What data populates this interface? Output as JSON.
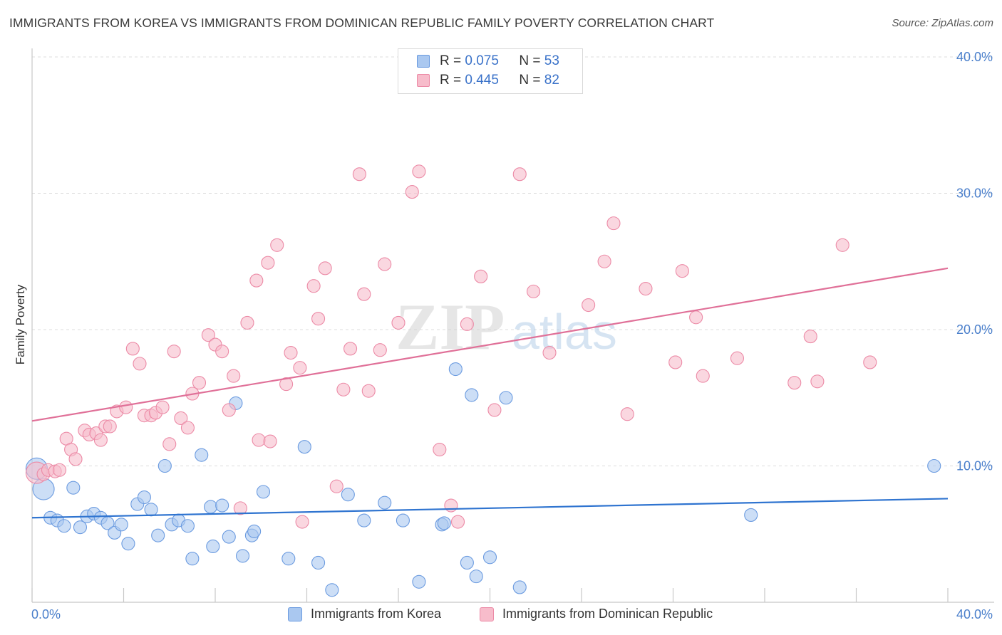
{
  "title": "IMMIGRANTS FROM KOREA VS IMMIGRANTS FROM DOMINICAN REPUBLIC FAMILY POVERTY CORRELATION CHART",
  "source": "Source: ZipAtlas.com",
  "watermark": {
    "zip": "ZIP",
    "atlas": "atlas"
  },
  "legend": {
    "r_label": "R =",
    "n_label": "N =",
    "series": [
      {
        "r": "0.075",
        "n": "53"
      },
      {
        "r": "0.445",
        "n": "82"
      }
    ]
  },
  "bottom_legend": [
    "Immigrants from Korea",
    "Immigrants from Dominican Republic"
  ],
  "colors": {
    "korea_fill": "#aac8f0",
    "korea_stroke": "#6b9be0",
    "korea_line": "#2f74d0",
    "dr_fill": "#f7bccb",
    "dr_stroke": "#ec8aa6",
    "dr_line": "#e07098",
    "tick_label": "#4a7fcb",
    "grid": "#dcdcdc"
  },
  "chart_data": {
    "type": "scatter",
    "xlabel": "",
    "ylabel": "Family Poverty",
    "xlim": [
      0,
      40
    ],
    "ylim": [
      0,
      40
    ],
    "x_tick_labels": [
      "0.0%",
      "40.0%"
    ],
    "y_ticks": [
      10,
      20,
      30,
      40
    ],
    "y_tick_labels": [
      "10.0%",
      "20.0%",
      "30.0%",
      "40.0%"
    ],
    "grid": true,
    "legend_position": "top-center",
    "series": [
      {
        "name": "Immigrants from Korea",
        "r": 0.075,
        "n": 53,
        "trend": {
          "x": [
            0,
            40
          ],
          "y": [
            6.2,
            7.6
          ]
        },
        "points": [
          [
            0.2,
            9.8,
            1
          ],
          [
            0.5,
            8.3,
            1
          ],
          [
            0.8,
            6.2,
            0
          ],
          [
            1.1,
            6.0,
            0
          ],
          [
            1.4,
            5.6,
            0
          ],
          [
            1.8,
            8.4,
            0
          ],
          [
            2.1,
            5.5,
            0
          ],
          [
            2.4,
            6.3,
            0
          ],
          [
            2.7,
            6.5,
            0
          ],
          [
            3.0,
            6.2,
            0
          ],
          [
            3.3,
            5.8,
            0
          ],
          [
            3.6,
            5.1,
            0
          ],
          [
            3.9,
            5.7,
            0
          ],
          [
            4.2,
            4.3,
            0
          ],
          [
            4.6,
            7.2,
            0
          ],
          [
            4.9,
            7.7,
            0
          ],
          [
            5.2,
            6.8,
            0
          ],
          [
            5.5,
            4.9,
            0
          ],
          [
            5.8,
            10.0,
            0
          ],
          [
            6.1,
            5.7,
            0
          ],
          [
            6.4,
            6.0,
            0
          ],
          [
            6.8,
            5.6,
            0
          ],
          [
            7.0,
            3.2,
            0
          ],
          [
            7.4,
            10.8,
            0
          ],
          [
            7.8,
            7.0,
            0
          ],
          [
            7.9,
            4.1,
            0
          ],
          [
            8.3,
            7.1,
            0
          ],
          [
            8.6,
            4.8,
            0
          ],
          [
            8.9,
            14.6,
            0
          ],
          [
            9.2,
            3.4,
            0
          ],
          [
            9.6,
            4.9,
            0
          ],
          [
            9.7,
            5.2,
            0
          ],
          [
            10.1,
            8.1,
            0
          ],
          [
            11.2,
            3.2,
            0
          ],
          [
            11.9,
            11.4,
            0
          ],
          [
            12.5,
            2.9,
            0
          ],
          [
            13.1,
            0.9,
            0
          ],
          [
            13.8,
            7.9,
            0
          ],
          [
            14.5,
            6.0,
            0
          ],
          [
            15.4,
            7.3,
            0
          ],
          [
            16.2,
            6.0,
            0
          ],
          [
            16.9,
            1.5,
            0
          ],
          [
            17.9,
            5.7,
            0
          ],
          [
            18.0,
            5.8,
            0
          ],
          [
            18.5,
            17.1,
            0
          ],
          [
            19.2,
            15.2,
            0
          ],
          [
            19.0,
            2.9,
            0
          ],
          [
            19.4,
            1.9,
            0
          ],
          [
            20.0,
            3.3,
            0
          ],
          [
            20.7,
            15.0,
            0
          ],
          [
            21.3,
            1.1,
            0
          ],
          [
            31.4,
            6.4,
            0
          ],
          [
            39.4,
            10.0,
            0
          ]
        ]
      },
      {
        "name": "Immigrants from Dominican Republic",
        "r": 0.445,
        "n": 82,
        "trend": {
          "x": [
            0,
            40
          ],
          "y": [
            13.3,
            24.5
          ]
        },
        "points": [
          [
            0.2,
            9.5,
            1
          ],
          [
            0.5,
            9.4,
            0
          ],
          [
            0.7,
            9.7,
            0
          ],
          [
            1.0,
            9.6,
            0
          ],
          [
            1.2,
            9.7,
            0
          ],
          [
            1.5,
            12.0,
            0
          ],
          [
            1.7,
            11.2,
            0
          ],
          [
            1.9,
            10.5,
            0
          ],
          [
            2.3,
            12.6,
            0
          ],
          [
            2.5,
            12.3,
            0
          ],
          [
            2.8,
            12.4,
            0
          ],
          [
            3.0,
            11.9,
            0
          ],
          [
            3.2,
            12.9,
            0
          ],
          [
            3.4,
            12.9,
            0
          ],
          [
            3.7,
            14.0,
            0
          ],
          [
            4.1,
            14.3,
            0
          ],
          [
            4.4,
            18.6,
            0
          ],
          [
            4.7,
            17.5,
            0
          ],
          [
            4.9,
            13.7,
            0
          ],
          [
            5.2,
            13.7,
            0
          ],
          [
            5.4,
            13.9,
            0
          ],
          [
            5.7,
            14.3,
            0
          ],
          [
            6.0,
            11.6,
            0
          ],
          [
            6.2,
            18.4,
            0
          ],
          [
            6.5,
            13.5,
            0
          ],
          [
            6.8,
            12.8,
            0
          ],
          [
            7.0,
            15.3,
            0
          ],
          [
            7.3,
            16.1,
            0
          ],
          [
            7.7,
            19.6,
            0
          ],
          [
            8.0,
            18.9,
            0
          ],
          [
            8.3,
            18.4,
            0
          ],
          [
            8.6,
            14.1,
            0
          ],
          [
            8.8,
            16.6,
            0
          ],
          [
            9.1,
            6.9,
            0
          ],
          [
            9.4,
            20.5,
            0
          ],
          [
            9.8,
            23.6,
            0
          ],
          [
            9.9,
            11.9,
            0
          ],
          [
            10.3,
            24.9,
            0
          ],
          [
            10.4,
            11.8,
            0
          ],
          [
            10.7,
            26.2,
            0
          ],
          [
            11.1,
            16.0,
            0
          ],
          [
            11.3,
            18.3,
            0
          ],
          [
            11.7,
            17.2,
            0
          ],
          [
            11.8,
            5.9,
            0
          ],
          [
            12.3,
            23.2,
            0
          ],
          [
            12.5,
            20.8,
            0
          ],
          [
            12.8,
            24.5,
            0
          ],
          [
            13.3,
            8.5,
            0
          ],
          [
            13.6,
            15.6,
            0
          ],
          [
            13.9,
            18.6,
            0
          ],
          [
            14.3,
            31.4,
            0
          ],
          [
            14.5,
            22.6,
            0
          ],
          [
            14.7,
            15.5,
            0
          ],
          [
            15.2,
            18.5,
            0
          ],
          [
            15.4,
            24.8,
            0
          ],
          [
            16.0,
            20.5,
            0
          ],
          [
            16.6,
            30.1,
            0
          ],
          [
            16.9,
            31.6,
            0
          ],
          [
            17.8,
            11.2,
            0
          ],
          [
            18.3,
            7.1,
            0
          ],
          [
            18.6,
            5.9,
            0
          ],
          [
            19.0,
            20.4,
            0
          ],
          [
            19.6,
            23.9,
            0
          ],
          [
            20.2,
            14.1,
            0
          ],
          [
            21.3,
            31.4,
            0
          ],
          [
            21.9,
            22.8,
            0
          ],
          [
            22.6,
            18.3,
            0
          ],
          [
            24.3,
            21.8,
            0
          ],
          [
            25.0,
            25.0,
            0
          ],
          [
            25.4,
            27.8,
            0
          ],
          [
            26.0,
            13.8,
            0
          ],
          [
            26.8,
            23.0,
            0
          ],
          [
            28.1,
            17.6,
            0
          ],
          [
            28.4,
            24.3,
            0
          ],
          [
            29.0,
            20.9,
            0
          ],
          [
            29.3,
            16.6,
            0
          ],
          [
            30.8,
            17.9,
            0
          ],
          [
            33.3,
            16.1,
            0
          ],
          [
            34.0,
            19.5,
            0
          ],
          [
            34.3,
            16.2,
            0
          ],
          [
            35.4,
            26.2,
            0
          ],
          [
            36.6,
            17.6,
            0
          ]
        ]
      }
    ]
  }
}
